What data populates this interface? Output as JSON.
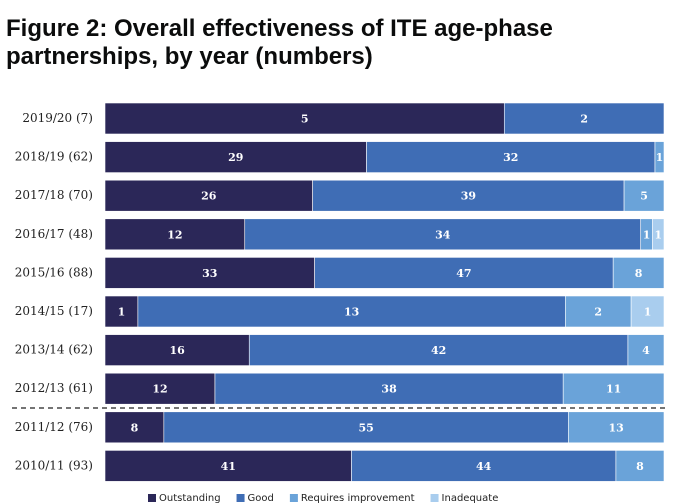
{
  "chart_data": {
    "type": "stacked_bar_100",
    "title": "Figure 2: Overall effectiveness of ITE age-phase partnerships, by year (numbers)",
    "categories": [
      "2019/20 (7)",
      "2018/19 (62)",
      "2017/18 (70)",
      "2016/17 (48)",
      "2015/16 (88)",
      "2014/15 (17)",
      "2013/14 (62)",
      "2012/13 (61)",
      "2011/12 (76)",
      "2010/11 (93)"
    ],
    "series": [
      {
        "name": "Outstanding",
        "color": "#2b2758",
        "values": [
          5,
          29,
          26,
          12,
          33,
          1,
          16,
          12,
          8,
          41
        ]
      },
      {
        "name": "Good",
        "color": "#3f6db5",
        "values": [
          2,
          32,
          39,
          34,
          47,
          13,
          42,
          38,
          55,
          44
        ]
      },
      {
        "name": "Requires improvement",
        "color": "#6aa3d9",
        "values": [
          0,
          1,
          5,
          1,
          8,
          2,
          4,
          11,
          13,
          8
        ]
      },
      {
        "name": "Inadequate",
        "color": "#a9cdee",
        "values": [
          0,
          0,
          0,
          1,
          0,
          1,
          0,
          0,
          0,
          0
        ]
      }
    ]
  }
}
